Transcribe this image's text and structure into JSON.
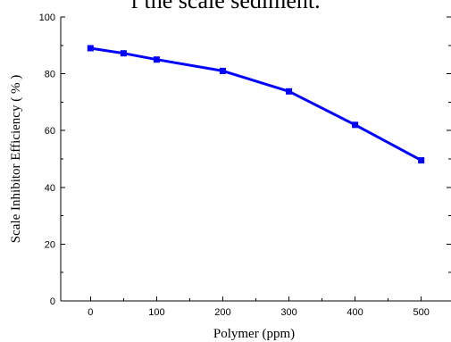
{
  "page": {
    "top_text": "f the scale sediment."
  },
  "chart_data": {
    "type": "line",
    "title": "",
    "xlabel": "Polymer (ppm)",
    "ylabel": "Scale Inhibitor Efficiency ( % )",
    "xlim": [
      -45,
      545
    ],
    "ylim": [
      0,
      100
    ],
    "x_ticks": [
      0,
      100,
      200,
      300,
      400,
      500
    ],
    "y_ticks": [
      0,
      20,
      40,
      60,
      80,
      100
    ],
    "grid": false,
    "legend": "none",
    "color": "#0000ff",
    "series": [
      {
        "x": [
          0,
          50,
          100,
          200,
          300,
          400,
          500
        ],
        "y": [
          89.0,
          87.2,
          85.0,
          81.0,
          73.8,
          62.0,
          49.5
        ]
      }
    ]
  }
}
